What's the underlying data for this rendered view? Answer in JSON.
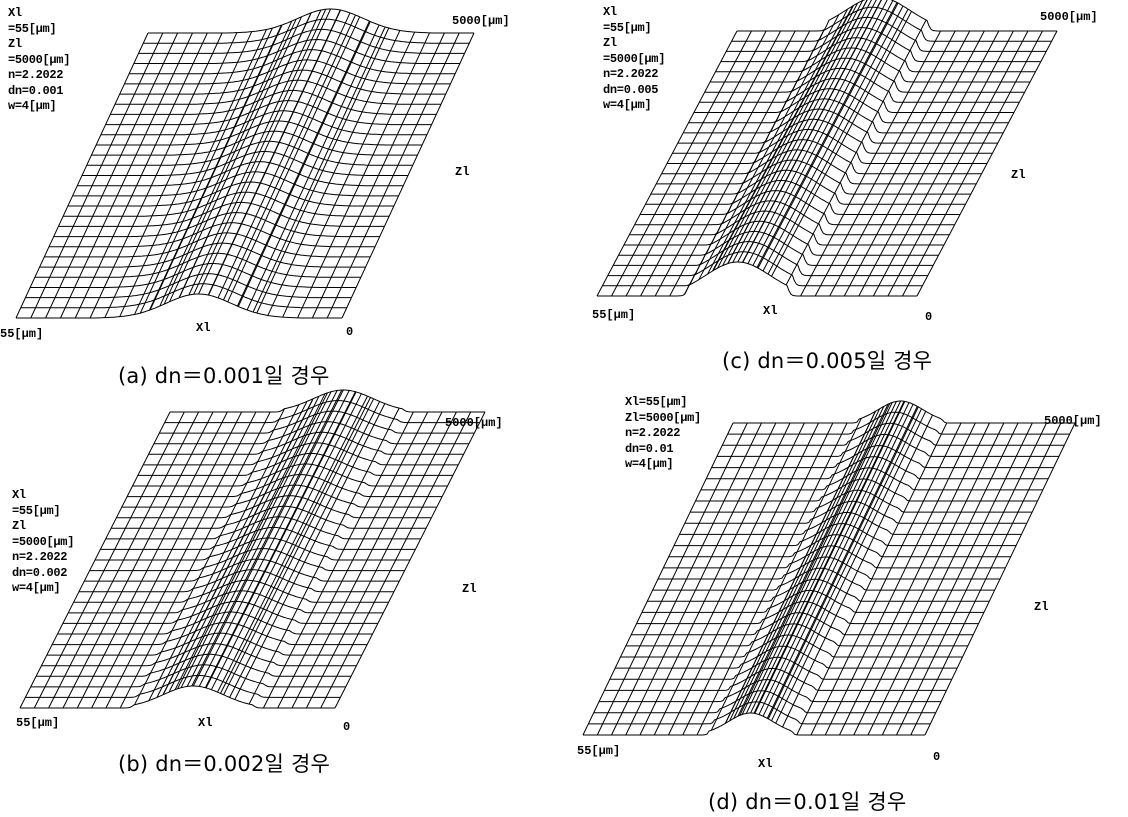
{
  "panels": [
    {
      "id": "a",
      "params": [
        "Xl =55[μm]",
        "Zl =5000[μm]",
        "n=2.2022",
        "dn=0.001",
        "w=4[μm]"
      ],
      "axis_far_label": "5000[μm]",
      "axis_z_label": "Zl",
      "axis_x_left": "55[μm]",
      "axis_x_mid": "Xl",
      "axis_x_right": "0",
      "caption": "(a) dn＝0.001일 경우"
    },
    {
      "id": "c",
      "params": [
        "Xl =55[μm]",
        "Zl =5000[μm]",
        "n=2.2022",
        "dn=0.005",
        "w=4[μm]"
      ],
      "axis_far_label": "5000[μm]",
      "axis_z_label": "Zl",
      "axis_x_left": "55[μm]",
      "axis_x_mid": "Xl",
      "axis_x_right": "0",
      "caption": "(c) dn＝0.005일 경우"
    },
    {
      "id": "b",
      "params": [
        "Xl =55[μm]",
        "Zl =5000[μm]",
        "n=2.2022",
        "dn=0.002",
        "w=4[μm]"
      ],
      "axis_far_label": "5000[μm]",
      "axis_z_label": "Zl",
      "axis_x_left": "55[μm]",
      "axis_x_mid": "Xl",
      "axis_x_right": "0",
      "caption": "(b) dn＝0.002일 경우"
    },
    {
      "id": "d",
      "params": [
        "Xl=55[μm]",
        "Zl=5000[μm]",
        "n=2.2022",
        "dn=0.01",
        "w=4[μm]"
      ],
      "axis_far_label": "5000[μm]",
      "axis_z_label": "Zl",
      "axis_x_left": "55[μm]",
      "axis_x_mid": "Xl",
      "axis_x_right": "0",
      "caption": "(d) dn＝0.01일 경우"
    }
  ]
}
